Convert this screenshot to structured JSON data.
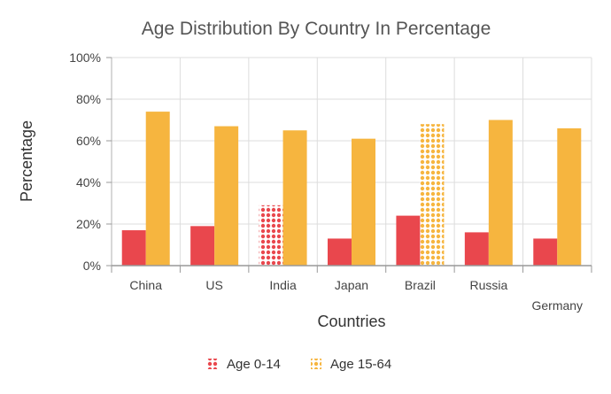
{
  "chart_data": {
    "type": "bar",
    "title": "Age Distribution By Country In Percentage",
    "xlabel": "Countries",
    "ylabel": "Percentage",
    "categories": [
      "China",
      "US",
      "India",
      "Japan",
      "Brazil",
      "Russia",
      "Germany"
    ],
    "yticks": [
      "0%",
      "20%",
      "40%",
      "60%",
      "80%",
      "100%"
    ],
    "ylim": [
      0,
      100
    ],
    "grid": true,
    "legend_position": "bottom",
    "series": [
      {
        "name": "Age 0-14",
        "color": "#e9474d",
        "values": [
          17,
          19,
          29,
          13,
          24,
          16,
          13
        ],
        "highlighted_index": 2
      },
      {
        "name": "Age 15-64",
        "color": "#f6b53f",
        "values": [
          74,
          67,
          65,
          61,
          68,
          70,
          66
        ],
        "highlighted_index": 4
      }
    ]
  }
}
